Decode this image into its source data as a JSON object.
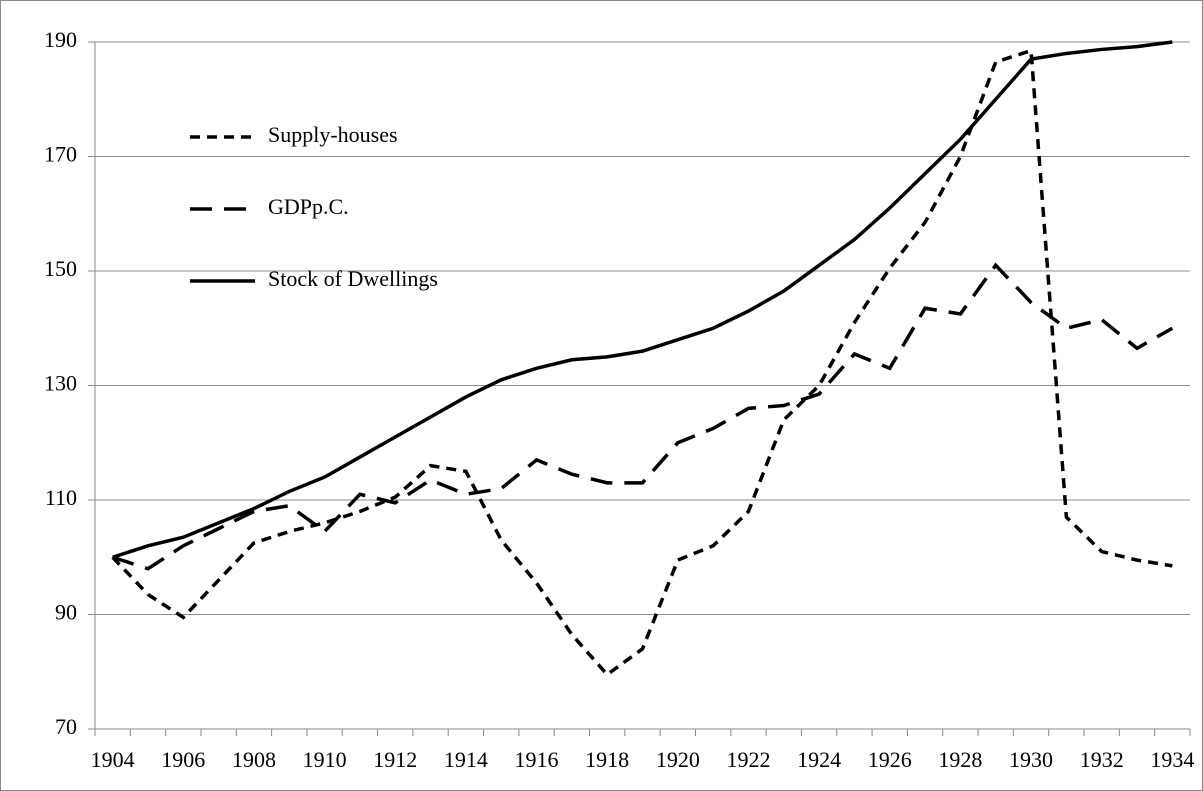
{
  "chart_data": {
    "type": "line",
    "categories": [
      "1904",
      null,
      "1906",
      null,
      "1908",
      null,
      "1910",
      null,
      "1912",
      null,
      "1914",
      null,
      "1916",
      null,
      "1918",
      null,
      "1920",
      null,
      "1922",
      null,
      "1924",
      null,
      "1926",
      null,
      "1928",
      null,
      "1930",
      null,
      "1932",
      null,
      "1934"
    ],
    "series": [
      {
        "name": "Supply-houses",
        "color": "#000000",
        "dash": "short",
        "values": [
          100,
          93.5,
          89.5,
          96,
          102.5,
          104.5,
          106,
          108,
          110.5,
          116,
          115,
          103,
          95.5,
          86.5,
          79.5,
          84,
          99.5,
          102,
          108,
          124,
          130,
          141,
          150.5,
          158.5,
          170,
          186.5,
          188.5,
          107,
          101,
          99.5,
          98.5
        ]
      },
      {
        "name": "GDPp.C.",
        "color": "#000000",
        "dash": "long",
        "values": [
          100,
          98,
          102,
          105,
          108,
          109,
          104.5,
          111,
          109.5,
          113.5,
          111,
          112,
          117,
          114.5,
          113,
          113,
          120,
          122.5,
          126,
          126.5,
          128.5,
          135.5,
          133,
          143.5,
          142.5,
          151,
          144.5,
          140,
          141.5,
          136.5,
          140
        ]
      },
      {
        "name": "Stock of Dwellings",
        "color": "#000000",
        "dash": "solid",
        "values": [
          100,
          102,
          103.5,
          106,
          108.5,
          111.5,
          114,
          117.5,
          121,
          124.5,
          128,
          131,
          133,
          134.5,
          135,
          136,
          138,
          140,
          143,
          146.5,
          151,
          155.5,
          161,
          167,
          173,
          180,
          187,
          188,
          188.7,
          189.2,
          190
        ]
      }
    ],
    "ylim": [
      70,
      190
    ],
    "yticks": [
      70,
      90,
      110,
      130,
      150,
      170,
      190
    ],
    "grid": true,
    "legend": "upper left"
  }
}
